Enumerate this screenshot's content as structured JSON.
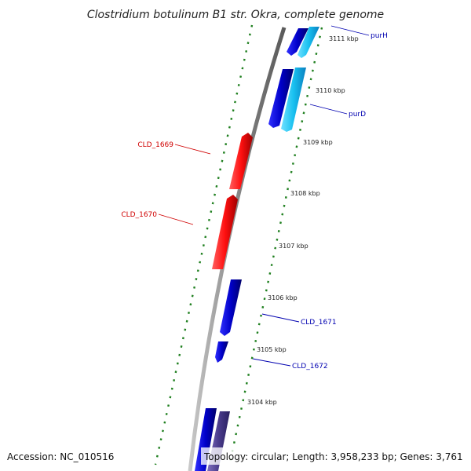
{
  "title": "Clostridium botulinum B1 str. Okra, complete genome",
  "accession": "Accession: NC_010516",
  "topology": "Topology: circular; Length: 3,958,233 bp; Genes: 3,761",
  "ticks": [
    "3111 kbp",
    "3110 kbp",
    "3109 kbp",
    "3108 kbp",
    "3107 kbp",
    "3106 kbp",
    "3105 kbp",
    "3104 kbp"
  ],
  "genes": [
    {
      "label": "purH",
      "color": "#0a0ad8"
    },
    {
      "label": "purD",
      "color": "#0a0ad8"
    },
    {
      "label": "CLD_1669",
      "color": "#d80000"
    },
    {
      "label": "CLD_1670",
      "color": "#d80000"
    },
    {
      "label": "CLD_1671",
      "color": "#0a0ad8"
    },
    {
      "label": "CLD_1672",
      "color": "#0a0ad8"
    }
  ],
  "colors": {
    "forward_cds": "#0a0ad8",
    "forward_cds_light": "#18c8f0",
    "reverse_cds": "#ff1010",
    "backbone": "#8a8a8a",
    "gc_track": "#208020",
    "other": "#4a3c8c"
  }
}
